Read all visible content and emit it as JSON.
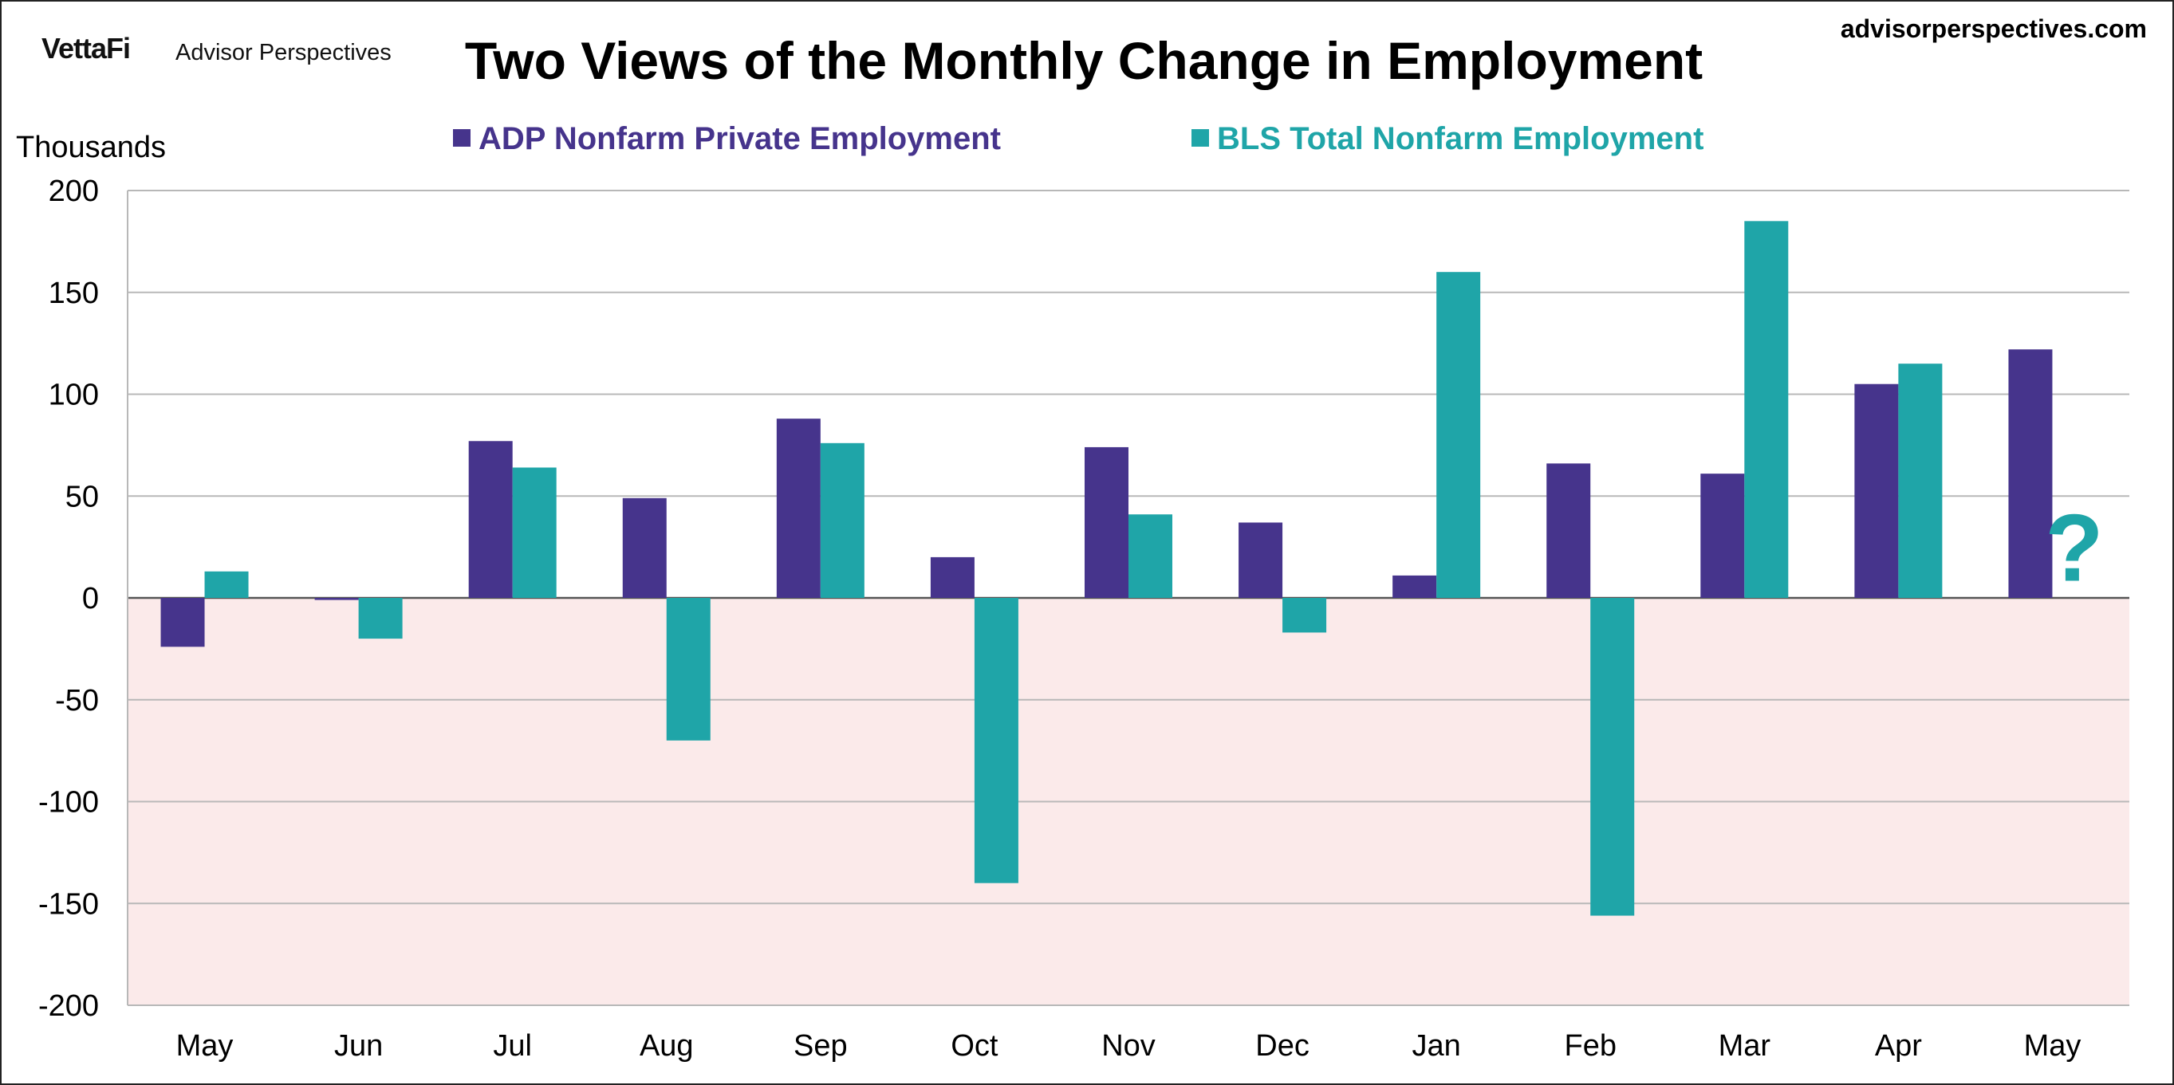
{
  "header": {
    "logo_brand": "VettaFi",
    "logo_sub": "Advisor Perspectives",
    "site": "advisorperspectives.com"
  },
  "chart_data": {
    "type": "bar",
    "title": "Two Views of the Monthly Change in Employment",
    "ylabel": "Thousands",
    "xlabel": "",
    "ylim": [
      -200,
      200
    ],
    "yticks": [
      200,
      150,
      100,
      50,
      0,
      -50,
      -100,
      -150,
      -200
    ],
    "grid": true,
    "legend_position": "top",
    "negative_region_color": "#fbeaea",
    "categories": [
      "May",
      "Jun",
      "Jul",
      "Aug",
      "Sep",
      "Oct",
      "Nov",
      "Dec",
      "Jan",
      "Feb",
      "Mar",
      "Apr",
      "May"
    ],
    "series": [
      {
        "name": "ADP Nonfarm Private Employment",
        "color": "#46348c",
        "values": [
          -24,
          -1,
          77,
          49,
          88,
          20,
          74,
          37,
          11,
          66,
          61,
          105,
          122
        ]
      },
      {
        "name": "BLS Total Nonfarm Employment",
        "color": "#1fa5a8",
        "values": [
          13,
          -20,
          64,
          -70,
          76,
          -140,
          41,
          -17,
          160,
          -156,
          185,
          115,
          null
        ]
      }
    ],
    "annotations": [
      {
        "text": "?",
        "category_index": 12,
        "series_index": 1,
        "y": 30,
        "color": "#1fa5a8"
      }
    ]
  }
}
